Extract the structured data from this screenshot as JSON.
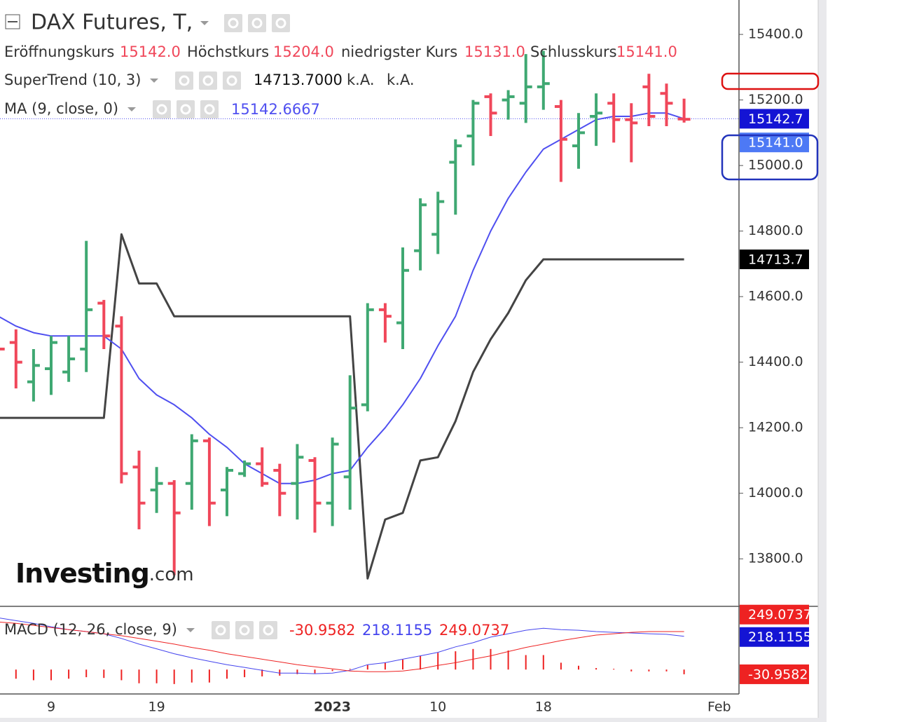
{
  "chart_data": [
    {
      "type": "ohlc",
      "title": "DAX Futures, T,",
      "categories": [
        null,
        null,
        null,
        "9",
        null,
        null,
        null,
        null,
        null,
        "19",
        null,
        null,
        null,
        null,
        null,
        null,
        null,
        null,
        null,
        "2023",
        null,
        null,
        null,
        null,
        null,
        "10",
        null,
        null,
        null,
        null,
        null,
        "18",
        null,
        null,
        null,
        null,
        null,
        null,
        null,
        null,
        null,
        "Feb"
      ],
      "ohlc_legend": [
        {
          "name": "Eröffnungskurs",
          "value_label": "15142.0"
        },
        {
          "name": "Höchstkurs",
          "value_label": "15204.0"
        },
        {
          "name": "niedrigster Kurs",
          "value_label": "15131.0"
        },
        {
          "name": "Schlusskurs",
          "value_label": "15141.0"
        }
      ],
      "open": [
        14500,
        14460,
        14340,
        14380,
        14370,
        14440,
        14580,
        14510,
        14080,
        14010,
        14030,
        14030,
        14160,
        14010,
        14060,
        14090,
        14070,
        14030,
        14100,
        13970,
        14050,
        14270,
        14560,
        14520,
        14740,
        14790,
        15010,
        15090,
        15210,
        15200,
        15190,
        15240,
        15180,
        15060,
        15150,
        15190,
        15140,
        15240,
        15220,
        15142,
        null,
        null
      ],
      "high": [
        14560,
        14500,
        14440,
        14480,
        14480,
        14770,
        14590,
        14540,
        14130,
        14080,
        14040,
        14180,
        14170,
        14080,
        14100,
        14140,
        14090,
        14150,
        14110,
        14170,
        14360,
        14580,
        14580,
        14750,
        14900,
        14920,
        15080,
        15200,
        15220,
        15230,
        15340,
        15350,
        15200,
        15160,
        15220,
        15220,
        15190,
        15280,
        15250,
        15204,
        null,
        null
      ],
      "low": [
        14350,
        14320,
        14280,
        14300,
        14340,
        14370,
        14440,
        14030,
        13890,
        13940,
        13750,
        13950,
        13900,
        13930,
        14050,
        14020,
        13930,
        13920,
        13880,
        13900,
        13950,
        14250,
        14460,
        14440,
        14680,
        14730,
        14850,
        15000,
        15090,
        15140,
        15130,
        15170,
        14950,
        14990,
        15060,
        15070,
        15010,
        15120,
        15120,
        15131,
        null,
        null
      ],
      "close": [
        14440,
        14400,
        14390,
        14460,
        14410,
        14560,
        14480,
        14060,
        13970,
        14030,
        13940,
        14160,
        13970,
        14070,
        14090,
        14030,
        14000,
        14110,
        13970,
        14150,
        14260,
        14560,
        14540,
        14680,
        14880,
        14890,
        15060,
        15190,
        15160,
        15210,
        15240,
        15250,
        15080,
        15100,
        15160,
        15140,
        15130,
        15150,
        15190,
        15141,
        null,
        null
      ],
      "last_price_label": "15141.0",
      "up_color": "#3fa872",
      "down_color": "#f0475a",
      "last_price_color": "#4d79f5",
      "series": [
        {
          "name": "SuperTrend (10, 3)",
          "color": "#444444",
          "values": [
            14230,
            14230,
            14230,
            14230,
            14230,
            14230,
            14230,
            14790,
            14640,
            14640,
            14540,
            14540,
            14540,
            14540,
            14540,
            14540,
            14540,
            14540,
            14540,
            14540,
            14540,
            13740,
            13920,
            13940,
            14100,
            14110,
            14220,
            14370,
            14470,
            14550,
            14650,
            14713.7,
            14713.7,
            14713.7,
            14713.7,
            14713.7,
            14713.7,
            14713.7,
            14713.7,
            14713.7,
            null,
            null
          ],
          "last_label": "14713.7000",
          "extra_labels": [
            "k.A.",
            "k.A."
          ],
          "price_label": "14713.7"
        },
        {
          "name": "MA (9, close, 0)",
          "color": "#4f4ff0",
          "values": [
            14540,
            14510,
            14490,
            14480,
            14480,
            14480,
            14480,
            14440,
            14350,
            14300,
            14270,
            14230,
            14180,
            14140,
            14090,
            14060,
            14030,
            14030,
            14040,
            14060,
            14070,
            14140,
            14200,
            14270,
            14350,
            14450,
            14540,
            14680,
            14800,
            14900,
            14980,
            15050,
            15080,
            15110,
            15140,
            15150,
            15150,
            15160,
            15160,
            15142.6667,
            null,
            null
          ],
          "last_label": "15142.6667",
          "price_label": "15142.7"
        }
      ],
      "ylim": [
        13655,
        15505
      ],
      "yticks": [
        {
          "value": 13800,
          "label": "13800.0"
        },
        {
          "value": 14000,
          "label": "14000.0"
        },
        {
          "value": 14200,
          "label": "14200.0"
        },
        {
          "value": 14400,
          "label": "14400.0"
        },
        {
          "value": 14600,
          "label": "14600.0"
        },
        {
          "value": 14800,
          "label": "14800.0"
        },
        {
          "value": 15000,
          "label": "15000.0"
        },
        {
          "value": 15200,
          "label": "15200.0"
        },
        {
          "value": 15400,
          "label": "15400.0"
        }
      ],
      "logo": {
        "brand": "Investing",
        "suffix": ".com"
      }
    },
    {
      "type": "macd",
      "title": "MACD (12, 26, close, 9)",
      "series": [
        {
          "color": "#ee2222",
          "style": "histogram",
          "values": [
            -60,
            -60,
            -70,
            -70,
            -60,
            -50,
            -55,
            -70,
            -90,
            -90,
            -95,
            -85,
            -85,
            -60,
            -50,
            -45,
            -40,
            -30,
            -25,
            -10,
            5,
            30,
            45,
            65,
            90,
            110,
            120,
            135,
            135,
            125,
            95,
            95,
            45,
            25,
            10,
            5,
            -12,
            -12,
            -12,
            -30.9582,
            null,
            null
          ],
          "last_label": "-30.9582"
        },
        {
          "color": "#4444ee",
          "style": "line",
          "values": [
            339,
            321,
            303,
            281,
            262,
            249,
            235,
            204,
            167,
            136,
            104,
            77,
            54,
            32,
            14,
            -5,
            -23,
            -23,
            -27,
            -23,
            -5,
            32,
            45,
            68,
            90,
            113,
            149,
            176,
            213,
            235,
            258,
            271,
            262,
            258,
            249,
            244,
            240,
            235,
            231,
            218.1155,
            null,
            null
          ],
          "last_label": "218.1155"
        },
        {
          "color": "#ee2222",
          "style": "line",
          "values": [
            312,
            303,
            290,
            276,
            262,
            249,
            235,
            222,
            204,
            186,
            167,
            145,
            127,
            104,
            86,
            68,
            50,
            32,
            18,
            5,
            -9,
            -14,
            -14,
            -9,
            5,
            27,
            45,
            68,
            90,
            118,
            145,
            167,
            190,
            208,
            226,
            235,
            244,
            249,
            249,
            249.0737,
            null,
            null
          ],
          "last_label": "249.0737"
        }
      ],
      "ylim": [
        -160,
        410
      ]
    }
  ]
}
